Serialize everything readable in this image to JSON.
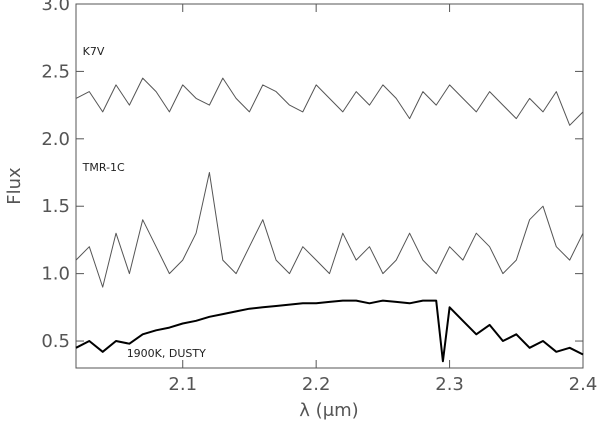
{
  "chart_data": {
    "type": "line",
    "xlabel": "λ (μm)",
    "ylabel": "Flux",
    "xlim": [
      2.02,
      2.4
    ],
    "ylim": [
      0.3,
      3.0
    ],
    "x_ticks": [
      {
        "value": 2.1,
        "label": "2.1"
      },
      {
        "value": 2.2,
        "label": "2.2"
      },
      {
        "value": 2.3,
        "label": "2.3"
      },
      {
        "value": 2.4,
        "label": "2.4"
      }
    ],
    "y_ticks": [
      {
        "value": 0.5,
        "label": "0.5"
      },
      {
        "value": 1.0,
        "label": "1.0"
      },
      {
        "value": 1.5,
        "label": "1.5"
      },
      {
        "value": 2.0,
        "label": "2.0"
      },
      {
        "value": 2.5,
        "label": "2.5"
      },
      {
        "value": 3.0,
        "label": "3.0"
      }
    ],
    "grid": false,
    "series": [
      {
        "name": "K7V",
        "x": [
          2.02,
          2.03,
          2.04,
          2.05,
          2.06,
          2.07,
          2.08,
          2.09,
          2.1,
          2.11,
          2.12,
          2.13,
          2.14,
          2.15,
          2.16,
          2.17,
          2.18,
          2.19,
          2.2,
          2.21,
          2.22,
          2.23,
          2.24,
          2.25,
          2.26,
          2.27,
          2.28,
          2.29,
          2.3,
          2.31,
          2.32,
          2.33,
          2.34,
          2.35,
          2.36,
          2.37,
          2.38,
          2.39,
          2.4
        ],
        "y": [
          2.3,
          2.35,
          2.2,
          2.4,
          2.25,
          2.45,
          2.35,
          2.2,
          2.4,
          2.3,
          2.25,
          2.45,
          2.3,
          2.2,
          2.4,
          2.35,
          2.25,
          2.2,
          2.4,
          2.3,
          2.2,
          2.35,
          2.25,
          2.4,
          2.3,
          2.15,
          2.35,
          2.25,
          2.4,
          2.3,
          2.2,
          2.35,
          2.25,
          2.15,
          2.3,
          2.2,
          2.35,
          2.1,
          2.2
        ],
        "color": "#555555"
      },
      {
        "name": "TMR-1C",
        "x": [
          2.02,
          2.03,
          2.04,
          2.05,
          2.06,
          2.07,
          2.08,
          2.09,
          2.1,
          2.11,
          2.12,
          2.13,
          2.14,
          2.15,
          2.16,
          2.17,
          2.18,
          2.19,
          2.2,
          2.21,
          2.22,
          2.23,
          2.24,
          2.25,
          2.26,
          2.27,
          2.28,
          2.29,
          2.3,
          2.31,
          2.32,
          2.33,
          2.34,
          2.35,
          2.36,
          2.37,
          2.38,
          2.39,
          2.4
        ],
        "y": [
          1.1,
          1.2,
          0.9,
          1.3,
          1.0,
          1.4,
          1.2,
          1.0,
          1.1,
          1.3,
          1.75,
          1.1,
          1.0,
          1.2,
          1.4,
          1.1,
          1.0,
          1.2,
          1.1,
          1.0,
          1.3,
          1.1,
          1.2,
          1.0,
          1.1,
          1.3,
          1.1,
          1.0,
          1.2,
          1.1,
          1.3,
          1.2,
          1.0,
          1.1,
          1.4,
          1.5,
          1.2,
          1.1,
          1.3
        ],
        "color": "#555555"
      },
      {
        "name": "1900K, DUSTY",
        "x": [
          2.02,
          2.03,
          2.04,
          2.05,
          2.06,
          2.07,
          2.08,
          2.09,
          2.1,
          2.11,
          2.12,
          2.13,
          2.14,
          2.15,
          2.16,
          2.17,
          2.18,
          2.19,
          2.2,
          2.21,
          2.22,
          2.23,
          2.24,
          2.25,
          2.26,
          2.27,
          2.28,
          2.29,
          2.295,
          2.3,
          2.31,
          2.32,
          2.33,
          2.34,
          2.35,
          2.36,
          2.37,
          2.38,
          2.39,
          2.4
        ],
        "y": [
          0.45,
          0.5,
          0.42,
          0.5,
          0.48,
          0.55,
          0.58,
          0.6,
          0.63,
          0.65,
          0.68,
          0.7,
          0.72,
          0.74,
          0.75,
          0.76,
          0.77,
          0.78,
          0.78,
          0.79,
          0.8,
          0.8,
          0.78,
          0.8,
          0.79,
          0.78,
          0.8,
          0.8,
          0.35,
          0.75,
          0.65,
          0.55,
          0.62,
          0.5,
          0.55,
          0.45,
          0.5,
          0.42,
          0.45,
          0.4
        ],
        "color": "#000000"
      }
    ],
    "annotations": [
      {
        "text": "K7V",
        "x": 2.025,
        "y": 2.62
      },
      {
        "text": "TMR-1C",
        "x": 2.025,
        "y": 1.76
      },
      {
        "text": "1900K, DUSTY",
        "x": 2.058,
        "y": 0.38
      }
    ]
  }
}
